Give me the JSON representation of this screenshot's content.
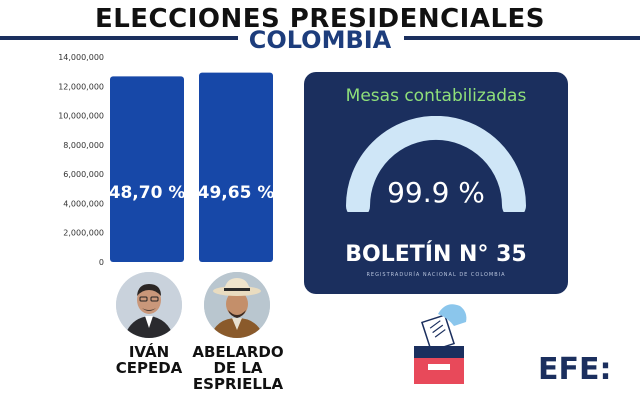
{
  "header": {
    "title": "ELECCIONES PRESIDENCIALES",
    "subtitle": "COLOMBIA"
  },
  "chart_data": {
    "type": "bar",
    "categories": [
      "IVÁN CEPEDA",
      "ABELARDO DE LA ESPRIELLA"
    ],
    "values": [
      12680000,
      12930000
    ],
    "bar_labels": [
      "48,70 %",
      "49,65 %"
    ],
    "y_ticks": [
      "0",
      "2,000,000",
      "4,000,000",
      "6,000,000",
      "8,000,000",
      "10,000,000",
      "12,000,000",
      "14,000,000"
    ],
    "ylim": [
      0,
      14000000
    ],
    "bar_color": "#1748a8"
  },
  "candidates": [
    {
      "name_lines": [
        "IVÁN",
        "CEPEDA"
      ],
      "avatar": "avatar"
    },
    {
      "name_lines": [
        "ABELARDO",
        "DE LA",
        "ESPRIELLA"
      ],
      "avatar": "avatar"
    }
  ],
  "panel": {
    "title": "Mesas contabilizadas",
    "value_text": "99.9 %",
    "value": 99.9,
    "bulletin": "BOLETÍN N° 35",
    "registry": "REGISTRADURÍA NACIONAL DE COLOMBIA"
  },
  "footer": {
    "logo": "EFE:"
  },
  "colors": {
    "navy": "#1b2f5e",
    "gauge": "#cfe6f7",
    "green": "#8fe07a",
    "bar": "#1748a8"
  }
}
